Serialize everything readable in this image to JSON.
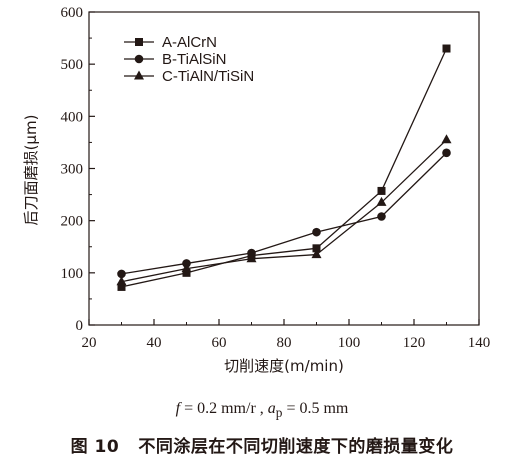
{
  "chart_data": {
    "type": "line",
    "title": "",
    "xlabel": "切削速度(m/min)",
    "ylabel": "后刀面磨损(μm)",
    "xlim": [
      20,
      140
    ],
    "ylim": [
      0,
      600
    ],
    "xticks": [
      20,
      40,
      60,
      80,
      100,
      120,
      140
    ],
    "yticks": [
      0,
      100,
      200,
      300,
      400,
      500,
      600
    ],
    "grid": false,
    "legend_position": "top-left",
    "x": [
      30,
      50,
      70,
      90,
      110,
      130
    ],
    "series": [
      {
        "name": "A-AlCrN",
        "marker": "square",
        "values": [
          73,
          100,
          133,
          147,
          257,
          530
        ]
      },
      {
        "name": "B-TiAlSiN",
        "marker": "circle",
        "values": [
          98,
          118,
          138,
          178,
          208,
          330
        ]
      },
      {
        "name": "C-TiAlN/TiSiN",
        "marker": "triangle",
        "values": [
          83,
          108,
          127,
          135,
          235,
          355
        ]
      }
    ],
    "line_color": "#231815"
  },
  "conditions": {
    "f_symbol": "f",
    "f_value": " = 0.2 mm/r , ",
    "ap_symbol": "a",
    "ap_sub": "p",
    "ap_value": " = 0.5 mm"
  },
  "caption": {
    "label": "图 10",
    "text": "不同涂层在不同切削速度下的磨损量变化"
  }
}
